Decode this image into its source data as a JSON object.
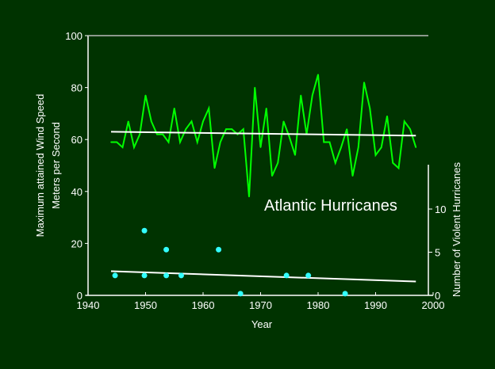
{
  "chart_data": {
    "type": "line",
    "title": "Atlantic Hurricanes",
    "xlabel": "Year",
    "ylabel_lines": [
      "Maximum attained Wind Speed",
      "Meters per Second"
    ],
    "ylabel_right": "Number of Violent Hurricanes",
    "xlim": [
      1940,
      2000
    ],
    "ylim": [
      0,
      100
    ],
    "ylim_right": [
      0,
      15
    ],
    "x_ticks": [
      "1940",
      "1950",
      "1960",
      "1970",
      "1980",
      "1990",
      "2000"
    ],
    "y_ticks": [
      "0",
      "20",
      "40",
      "60",
      "80",
      "100"
    ],
    "y_ticks_right": [
      "0",
      "5",
      "10"
    ],
    "grid": false,
    "colors": {
      "background": "#003300",
      "wind": "#00ff00",
      "hurricanes": "#33ffff",
      "trend": "#ffffff",
      "axes": "#ffffff"
    },
    "series": [
      {
        "name": "Maximum attained wind speed",
        "axis": "left",
        "x": [
          1944,
          1945,
          1946,
          1947,
          1948,
          1949,
          1950,
          1951,
          1952,
          1953,
          1954,
          1955,
          1956,
          1957,
          1958,
          1959,
          1960,
          1961,
          1962,
          1963,
          1964,
          1965,
          1966,
          1967,
          1968,
          1969,
          1970,
          1971,
          1972,
          1973,
          1974,
          1975,
          1976,
          1977,
          1978,
          1979,
          1980,
          1981,
          1982,
          1983,
          1984,
          1985,
          1986,
          1987,
          1988,
          1989,
          1990,
          1991,
          1992,
          1993,
          1994,
          1995,
          1996,
          1997
        ],
        "values": [
          59,
          59,
          57,
          67,
          57,
          62,
          77,
          67,
          62,
          62,
          59,
          72,
          59,
          64,
          67,
          59,
          67,
          72,
          49,
          59,
          64,
          64,
          62,
          64,
          38,
          80,
          57,
          72,
          46,
          51,
          67,
          61,
          54,
          77,
          62,
          77,
          85,
          59,
          59,
          51,
          57,
          64,
          46,
          57,
          82,
          72,
          54,
          57,
          69,
          51,
          49,
          67,
          64,
          57
        ]
      },
      {
        "name": "Wind speed trend",
        "axis": "left",
        "x": [
          1944,
          1997
        ],
        "values": [
          63,
          61.5
        ]
      },
      {
        "name": "Number of violent hurricanes",
        "axis": "right",
        "type": "scatter",
        "x": [
          1944.7,
          1949.8,
          1949.8,
          1953.6,
          1953.6,
          1956.2,
          1962.7,
          1966.5,
          1974.5,
          1978.3,
          1984.7
        ],
        "values": [
          2.3,
          7.5,
          2.3,
          5.3,
          2.3,
          2.3,
          5.3,
          0.2,
          2.3,
          2.3,
          0.2
        ]
      },
      {
        "name": "Violent hurricanes trend",
        "axis": "right",
        "x": [
          1944,
          1997
        ],
        "values": [
          2.8,
          1.6
        ]
      }
    ]
  }
}
